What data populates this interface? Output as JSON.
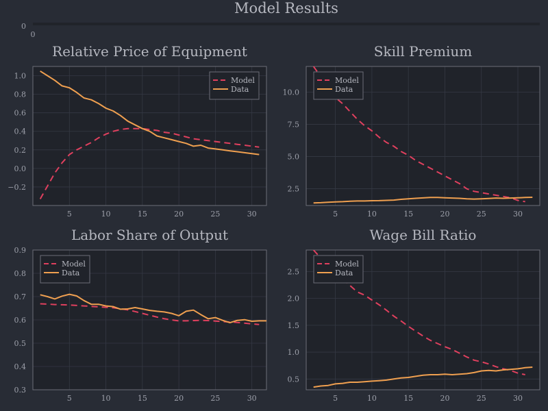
{
  "figure": {
    "title": "Model Results"
  },
  "top_strip": {
    "ytick": "0",
    "xtick": "0"
  },
  "colors": {
    "model": "#e0405e",
    "data": "#f0a050",
    "background": "#282c35",
    "plot_bg": "#20232a",
    "frame": "#6b6e78",
    "grid": "#353944"
  },
  "legend": {
    "model_label": "Model",
    "data_label": "Data",
    "placement": "top-right / top-left"
  },
  "chart_data": [
    {
      "type": "line",
      "title": "Relative Price of Equipment",
      "xlabel": "",
      "ylabel": "",
      "xlim": [
        0,
        32
      ],
      "ylim": [
        -0.4,
        1.1
      ],
      "xticks": [
        5,
        10,
        15,
        20,
        25,
        30
      ],
      "yticks": [
        -0.2,
        0.0,
        0.2,
        0.4,
        0.6,
        0.8,
        1.0
      ],
      "ytick_labels": [
        "−0.2",
        "0.0",
        "0.2",
        "0.4",
        "0.6",
        "0.8",
        "1.0"
      ],
      "legend_position": "top-right",
      "series": [
        {
          "name": "Model",
          "style": "dashed",
          "x": [
            1,
            2,
            3,
            4,
            5,
            6,
            7,
            8,
            9,
            10,
            11,
            12,
            13,
            14,
            15,
            16,
            17,
            18,
            19,
            20,
            21,
            22,
            23,
            24,
            25,
            26,
            27,
            28,
            29,
            30,
            31
          ],
          "y": [
            -0.33,
            -0.19,
            -0.05,
            0.06,
            0.15,
            0.2,
            0.24,
            0.28,
            0.33,
            0.37,
            0.4,
            0.42,
            0.43,
            0.43,
            0.43,
            0.42,
            0.41,
            0.39,
            0.38,
            0.36,
            0.34,
            0.32,
            0.31,
            0.3,
            0.29,
            0.28,
            0.27,
            0.26,
            0.25,
            0.24,
            0.23
          ]
        },
        {
          "name": "Data",
          "style": "solid",
          "x": [
            1,
            2,
            3,
            4,
            5,
            6,
            7,
            8,
            9,
            10,
            11,
            12,
            13,
            14,
            15,
            16,
            17,
            18,
            19,
            20,
            21,
            22,
            23,
            24,
            25,
            26,
            27,
            28,
            29,
            30,
            31
          ],
          "y": [
            1.05,
            1.0,
            0.95,
            0.89,
            0.87,
            0.82,
            0.76,
            0.74,
            0.7,
            0.65,
            0.62,
            0.57,
            0.51,
            0.47,
            0.43,
            0.4,
            0.35,
            0.33,
            0.31,
            0.29,
            0.27,
            0.24,
            0.25,
            0.22,
            0.21,
            0.2,
            0.19,
            0.18,
            0.17,
            0.16,
            0.15
          ]
        }
      ]
    },
    {
      "type": "line",
      "title": "Skill Premium",
      "xlabel": "",
      "ylabel": "",
      "xlim": [
        1,
        33
      ],
      "ylim": [
        1.2,
        12.0
      ],
      "xticks": [
        5,
        10,
        15,
        20,
        25,
        30
      ],
      "yticks": [
        2.5,
        5.0,
        7.5,
        10.0
      ],
      "ytick_labels": [
        "2.5",
        "5.0",
        "7.5",
        "10.0"
      ],
      "legend_position": "top-left",
      "series": [
        {
          "name": "Model",
          "style": "dashed",
          "x": [
            2,
            3,
            4,
            5,
            6,
            7,
            8,
            9,
            10,
            11,
            12,
            13,
            14,
            15,
            16,
            17,
            18,
            19,
            20,
            21,
            22,
            23,
            24,
            25,
            26,
            27,
            28,
            29,
            30,
            31
          ],
          "y": [
            12.0,
            11.2,
            10.3,
            9.6,
            9.1,
            8.5,
            7.9,
            7.4,
            7.0,
            6.5,
            6.1,
            5.8,
            5.4,
            5.1,
            4.7,
            4.4,
            4.1,
            3.8,
            3.5,
            3.2,
            2.9,
            2.5,
            2.3,
            2.2,
            2.1,
            2.0,
            1.9,
            1.8,
            1.6,
            1.5
          ]
        },
        {
          "name": "Data",
          "style": "solid",
          "x": [
            2,
            3,
            4,
            5,
            6,
            7,
            8,
            9,
            10,
            11,
            12,
            13,
            14,
            15,
            16,
            17,
            18,
            19,
            20,
            21,
            22,
            23,
            24,
            25,
            26,
            27,
            28,
            29,
            30,
            31,
            32
          ],
          "y": [
            1.4,
            1.42,
            1.45,
            1.48,
            1.5,
            1.53,
            1.55,
            1.55,
            1.57,
            1.58,
            1.6,
            1.62,
            1.68,
            1.72,
            1.76,
            1.79,
            1.82,
            1.82,
            1.8,
            1.78,
            1.76,
            1.72,
            1.7,
            1.72,
            1.75,
            1.78,
            1.76,
            1.78,
            1.8,
            1.82,
            1.84
          ]
        }
      ]
    },
    {
      "type": "line",
      "title": "Labor Share of Output",
      "xlabel": "",
      "ylabel": "",
      "xlim": [
        0,
        32
      ],
      "ylim": [
        0.3,
        0.9
      ],
      "xticks": [
        5,
        10,
        15,
        20,
        25,
        30
      ],
      "yticks": [
        0.3,
        0.4,
        0.5,
        0.6,
        0.7,
        0.8,
        0.9
      ],
      "ytick_labels": [
        "0.3",
        "0.4",
        "0.5",
        "0.6",
        "0.7",
        "0.8",
        "0.9"
      ],
      "legend_position": "top-left",
      "series": [
        {
          "name": "Model",
          "style": "dashed",
          "x": [
            1,
            2,
            3,
            4,
            5,
            6,
            7,
            8,
            9,
            10,
            11,
            12,
            13,
            14,
            15,
            16,
            17,
            18,
            19,
            20,
            21,
            22,
            23,
            24,
            25,
            26,
            27,
            28,
            29,
            30,
            31
          ],
          "y": [
            0.669,
            0.668,
            0.666,
            0.665,
            0.664,
            0.662,
            0.66,
            0.658,
            0.656,
            0.654,
            0.652,
            0.648,
            0.643,
            0.636,
            0.628,
            0.62,
            0.612,
            0.605,
            0.6,
            0.596,
            0.596,
            0.597,
            0.598,
            0.597,
            0.595,
            0.593,
            0.591,
            0.589,
            0.586,
            0.583,
            0.58
          ]
        },
        {
          "name": "Data",
          "style": "solid",
          "x": [
            1,
            2,
            3,
            4,
            5,
            6,
            7,
            8,
            9,
            10,
            11,
            12,
            13,
            14,
            15,
            16,
            17,
            18,
            19,
            20,
            21,
            22,
            23,
            24,
            25,
            26,
            27,
            28,
            29,
            30,
            31,
            32
          ],
          "y": [
            0.708,
            0.7,
            0.69,
            0.702,
            0.71,
            0.703,
            0.683,
            0.667,
            0.667,
            0.66,
            0.657,
            0.646,
            0.647,
            0.653,
            0.647,
            0.641,
            0.637,
            0.634,
            0.628,
            0.618,
            0.637,
            0.642,
            0.623,
            0.605,
            0.61,
            0.598,
            0.588,
            0.598,
            0.601,
            0.594,
            0.596,
            0.596
          ]
        }
      ]
    },
    {
      "type": "line",
      "title": "Wage Bill Ratio",
      "xlabel": "",
      "ylabel": "",
      "xlim": [
        1,
        33
      ],
      "ylim": [
        0.3,
        2.9
      ],
      "xticks": [
        5,
        10,
        15,
        20,
        25,
        30
      ],
      "yticks": [
        0.5,
        1.0,
        1.5,
        2.0,
        2.5
      ],
      "ytick_labels": [
        "0.5",
        "1.0",
        "1.5",
        "2.0",
        "2.5"
      ],
      "legend_position": "top-left",
      "series": [
        {
          "name": "Model",
          "style": "dashed",
          "x": [
            2,
            3,
            4,
            5,
            6,
            7,
            8,
            9,
            10,
            11,
            12,
            13,
            14,
            15,
            16,
            17,
            18,
            19,
            20,
            21,
            22,
            23,
            24,
            25,
            26,
            27,
            28,
            29,
            30,
            31
          ],
          "y": [
            2.9,
            2.75,
            2.6,
            2.5,
            2.36,
            2.24,
            2.12,
            2.06,
            1.97,
            1.88,
            1.78,
            1.67,
            1.58,
            1.48,
            1.39,
            1.3,
            1.22,
            1.16,
            1.1,
            1.05,
            0.98,
            0.91,
            0.85,
            0.82,
            0.78,
            0.73,
            0.69,
            0.66,
            0.61,
            0.58
          ]
        },
        {
          "name": "Data",
          "style": "solid",
          "x": [
            2,
            3,
            4,
            5,
            6,
            7,
            8,
            9,
            10,
            11,
            12,
            13,
            14,
            15,
            16,
            17,
            18,
            19,
            20,
            21,
            22,
            23,
            24,
            25,
            26,
            27,
            28,
            29,
            30,
            31,
            32
          ],
          "y": [
            0.35,
            0.37,
            0.38,
            0.41,
            0.42,
            0.44,
            0.44,
            0.45,
            0.46,
            0.47,
            0.48,
            0.5,
            0.52,
            0.53,
            0.55,
            0.57,
            0.58,
            0.58,
            0.59,
            0.58,
            0.59,
            0.6,
            0.62,
            0.65,
            0.66,
            0.65,
            0.67,
            0.68,
            0.69,
            0.71,
            0.72
          ]
        }
      ]
    }
  ]
}
